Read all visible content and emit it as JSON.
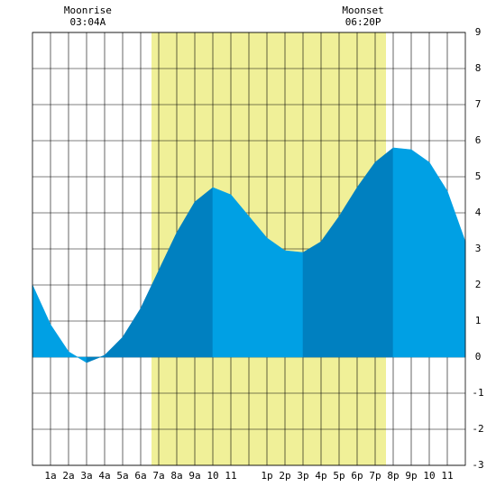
{
  "chart_data": {
    "type": "area",
    "annotations": [
      {
        "label": "Moonrise",
        "time": "03:04A",
        "x": 3.07
      },
      {
        "label": "Moonset",
        "time": "06:20P",
        "x": 18.33
      }
    ],
    "daylight": {
      "range": [
        6.6,
        19.6
      ],
      "color": "#f0f098"
    },
    "x": [
      0,
      1,
      2,
      3,
      4,
      5,
      6,
      7,
      8,
      9,
      10,
      11,
      12,
      13,
      14,
      15,
      16,
      17,
      18,
      19,
      20,
      21,
      22,
      23,
      24
    ],
    "series": [
      {
        "name": "Tide",
        "color": "#00a0e4",
        "rising_color": "#0080c0",
        "values": [
          2.0,
          0.9,
          0.15,
          -0.15,
          0.05,
          0.55,
          1.35,
          2.4,
          3.45,
          4.3,
          4.7,
          4.5,
          3.9,
          3.3,
          2.95,
          2.9,
          3.2,
          3.9,
          4.7,
          5.4,
          5.8,
          5.75,
          5.4,
          4.6,
          3.2
        ]
      }
    ],
    "xlim": [
      0,
      24
    ],
    "xticks": [
      {
        "value": 1,
        "label": "1a"
      },
      {
        "value": 2,
        "label": "2a"
      },
      {
        "value": 3,
        "label": "3a"
      },
      {
        "value": 4,
        "label": "4a"
      },
      {
        "value": 5,
        "label": "5a"
      },
      {
        "value": 6,
        "label": "6a"
      },
      {
        "value": 7,
        "label": "7a"
      },
      {
        "value": 8,
        "label": "8a"
      },
      {
        "value": 9,
        "label": "9a"
      },
      {
        "value": 10,
        "label": "10"
      },
      {
        "value": 11,
        "label": "11"
      },
      {
        "value": 12,
        "label": null
      },
      {
        "value": 13,
        "label": "1p"
      },
      {
        "value": 14,
        "label": "2p"
      },
      {
        "value": 15,
        "label": "3p"
      },
      {
        "value": 16,
        "label": "4p"
      },
      {
        "value": 17,
        "label": "5p"
      },
      {
        "value": 18,
        "label": "6p"
      },
      {
        "value": 19,
        "label": "7p"
      },
      {
        "value": 20,
        "label": "8p"
      },
      {
        "value": 21,
        "label": "9p"
      },
      {
        "value": 22,
        "label": "10"
      },
      {
        "value": 23,
        "label": "11"
      }
    ],
    "ylim": [
      -3,
      9
    ],
    "yticks": [
      -3,
      -2,
      -1,
      0,
      1,
      2,
      3,
      4,
      5,
      6,
      7,
      8,
      9
    ],
    "grid": true
  }
}
